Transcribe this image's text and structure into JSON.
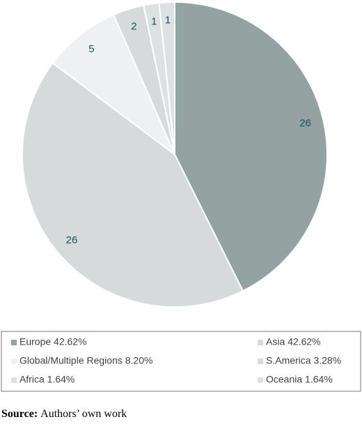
{
  "chart_data": {
    "type": "pie",
    "categories": [
      "Europe 42.62%",
      "Asia 42.62%",
      "Global/Multiple Regions 8.20%",
      "S.America 3.28%",
      "Africa 1.64%",
      "Oceania 1.64%"
    ],
    "values": [
      26,
      26,
      5,
      2,
      1,
      1
    ],
    "colors": [
      "#95a2a2",
      "#d6dada",
      "#eef0f1",
      "#d6dada",
      "#dde1e1",
      "#dde1e1"
    ],
    "legend": "bottom"
  },
  "source": {
    "label": "Source:",
    "text": "Authors’ own work"
  }
}
